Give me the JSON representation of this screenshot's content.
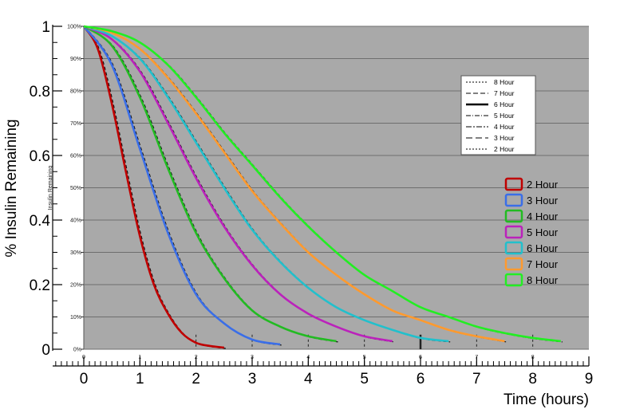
{
  "chart_data": {
    "type": "line",
    "xlabel": "Time (hours)",
    "ylabel": "% Insulin Remaining",
    "xlim": [
      0,
      9
    ],
    "ylim": [
      0,
      1
    ],
    "x_ticks": [
      "0",
      "1",
      "2",
      "3",
      "4",
      "5",
      "6",
      "7",
      "8",
      "9"
    ],
    "y_ticks": [
      "0",
      "0.2",
      "0.4",
      "0.6",
      "0.8",
      "1"
    ],
    "inner_y_ticks": [
      "0%",
      "10%",
      "20%",
      "30%",
      "40%",
      "50%",
      "60%",
      "70%",
      "80%",
      "90%",
      "100%"
    ],
    "inner_x_ticks": [
      "0",
      "1",
      "2",
      "3",
      "4",
      "5",
      "6",
      "7",
      "8"
    ],
    "inner_ylabel": "Insulin Remaining",
    "grid": true,
    "background": "#a9a9a9",
    "legend_position": "right",
    "series": [
      {
        "name": "2 Hour",
        "color": "#c00000",
        "duration": 2,
        "x": [
          0,
          0.25,
          0.5,
          0.75,
          1.0,
          1.25,
          1.5,
          1.75,
          2.0,
          2.25,
          2.5
        ],
        "y": [
          1.0,
          0.93,
          0.76,
          0.55,
          0.35,
          0.2,
          0.11,
          0.05,
          0.02,
          0.01,
          0.005
        ]
      },
      {
        "name": "3 Hour",
        "color": "#3a6ee8",
        "duration": 3,
        "x": [
          0,
          0.5,
          1.0,
          1.5,
          2.0,
          2.5,
          3.0,
          3.5
        ],
        "y": [
          1.0,
          0.88,
          0.62,
          0.36,
          0.17,
          0.08,
          0.03,
          0.015
        ]
      },
      {
        "name": "4 Hour",
        "color": "#22bb22",
        "duration": 4,
        "x": [
          0,
          0.5,
          1.0,
          1.5,
          2.0,
          2.5,
          3.0,
          3.5,
          4.0,
          4.5
        ],
        "y": [
          1.0,
          0.94,
          0.78,
          0.56,
          0.36,
          0.22,
          0.12,
          0.07,
          0.04,
          0.025
        ]
      },
      {
        "name": "5 Hour",
        "color": "#bb22bb",
        "duration": 5,
        "x": [
          0,
          0.5,
          1.0,
          1.5,
          2.0,
          2.5,
          3.0,
          3.5,
          4.0,
          4.5,
          5.0,
          5.5
        ],
        "y": [
          1.0,
          0.96,
          0.86,
          0.7,
          0.53,
          0.38,
          0.26,
          0.17,
          0.11,
          0.07,
          0.04,
          0.025
        ]
      },
      {
        "name": "6 Hour",
        "color": "#22c0cc",
        "duration": 6,
        "x": [
          0,
          0.5,
          1.0,
          1.5,
          2.0,
          2.5,
          3.0,
          3.5,
          4.0,
          4.5,
          5.0,
          5.5,
          6.0,
          6.5
        ],
        "y": [
          1.0,
          0.97,
          0.9,
          0.78,
          0.64,
          0.5,
          0.37,
          0.27,
          0.19,
          0.13,
          0.09,
          0.06,
          0.035,
          0.025
        ]
      },
      {
        "name": "7 Hour",
        "color": "#ff9a2e",
        "duration": 7,
        "x": [
          0,
          0.5,
          1.0,
          1.5,
          2.0,
          2.5,
          3.0,
          3.5,
          4.0,
          4.5,
          5.0,
          5.5,
          6.0,
          6.5,
          7.0,
          7.5
        ],
        "y": [
          1.0,
          0.98,
          0.93,
          0.84,
          0.73,
          0.61,
          0.49,
          0.39,
          0.3,
          0.23,
          0.17,
          0.12,
          0.09,
          0.06,
          0.04,
          0.025
        ]
      },
      {
        "name": "8 Hour",
        "color": "#22ee22",
        "duration": 8,
        "x": [
          0,
          0.5,
          1.0,
          1.5,
          2.0,
          2.5,
          3.0,
          3.5,
          4.0,
          4.5,
          5.0,
          5.5,
          6.0,
          6.5,
          7.0,
          7.5,
          8.0,
          8.5
        ],
        "y": [
          1.0,
          0.985,
          0.95,
          0.88,
          0.78,
          0.67,
          0.57,
          0.47,
          0.38,
          0.3,
          0.23,
          0.18,
          0.13,
          0.1,
          0.07,
          0.05,
          0.035,
          0.025
        ]
      }
    ],
    "style_legend": [
      {
        "name": "8 Hour",
        "dash": "2,2",
        "width": 1
      },
      {
        "name": "7 Hour",
        "dash": "6,3",
        "width": 1
      },
      {
        "name": "6 Hour",
        "dash": "",
        "width": 2.5
      },
      {
        "name": "5 Hour",
        "dash": "6,2,1,2",
        "width": 1
      },
      {
        "name": "4 Hour",
        "dash": "7,2,2,2",
        "width": 1
      },
      {
        "name": "3 Hour",
        "dash": "8,4",
        "width": 1
      },
      {
        "name": "2 Hour",
        "dash": "2,2",
        "width": 1
      }
    ]
  }
}
